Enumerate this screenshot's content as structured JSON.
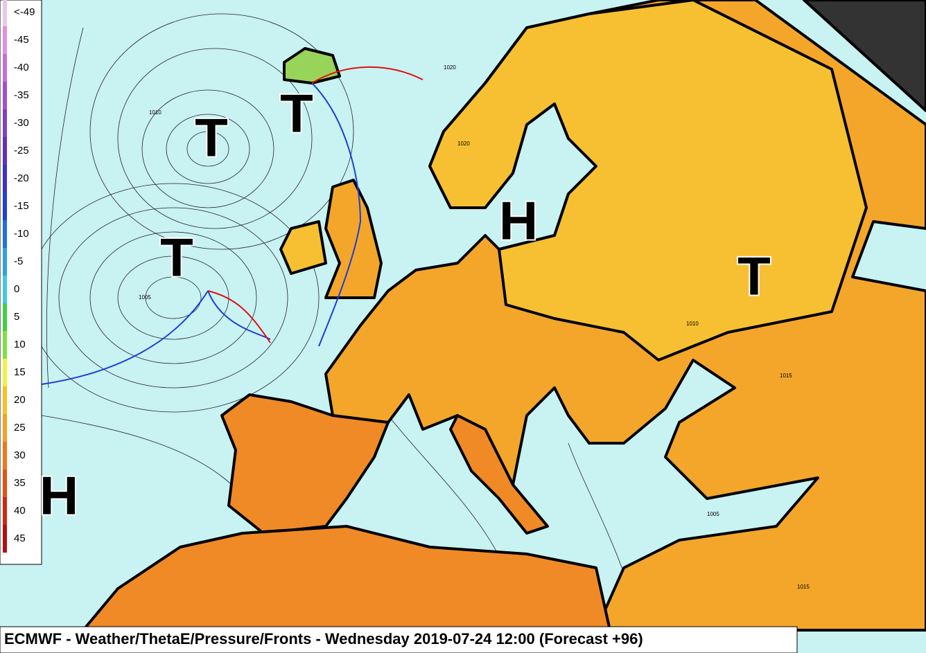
{
  "legend": {
    "labels": [
      "<-49",
      "-45",
      "-40",
      "-35",
      "-30",
      "-25",
      "-20",
      "-15",
      "-10",
      "-5",
      "0",
      "5",
      "10",
      "15",
      "20",
      "25",
      "30",
      "35",
      "40",
      "45"
    ]
  },
  "systems": [
    {
      "label": "T"
    },
    {
      "label": "T"
    },
    {
      "label": "T"
    },
    {
      "label": "H"
    },
    {
      "label": "T"
    },
    {
      "label": "H"
    }
  ],
  "isobar_labels": [
    "1020",
    "1010",
    "1005",
    "1015",
    "1020",
    "1015",
    "1010",
    "1005"
  ],
  "caption": "ECMWF - Weather/ThetaE/Pressure/Fronts - Wednesday 2019-07-24 12:00 (Forecast +96)"
}
